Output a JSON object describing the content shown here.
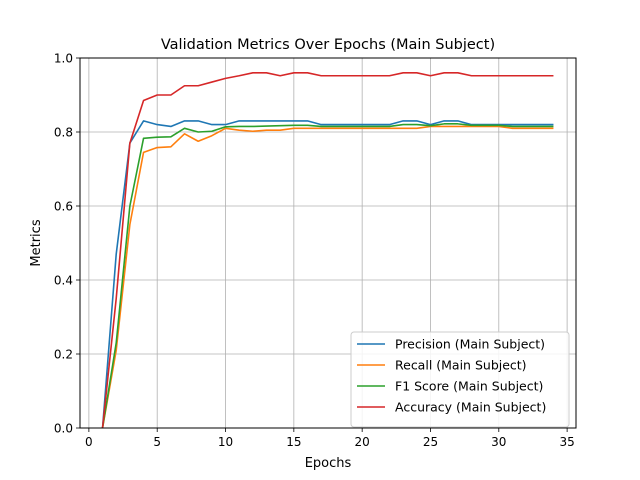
{
  "chart_data": {
    "type": "line",
    "title": "Validation Metrics Over Epochs (Main Subject)",
    "xlabel": "Epochs",
    "ylabel": "Metrics",
    "xlim": [
      -0.65,
      35.65
    ],
    "ylim": [
      0.0,
      1.0
    ],
    "xticks": [
      0,
      5,
      10,
      15,
      20,
      25,
      30,
      35
    ],
    "xtick_labels": [
      "0",
      "5",
      "10",
      "15",
      "20",
      "25",
      "30",
      "35"
    ],
    "yticks": [
      0.0,
      0.2,
      0.4,
      0.6,
      0.8,
      1.0
    ],
    "ytick_labels": [
      "0.0",
      "0.2",
      "0.4",
      "0.6",
      "0.8",
      "1.0"
    ],
    "grid": true,
    "legend_position": "lower-right",
    "x": [
      1,
      2,
      3,
      4,
      5,
      6,
      7,
      8,
      9,
      10,
      11,
      12,
      13,
      14,
      15,
      16,
      17,
      18,
      19,
      20,
      21,
      22,
      23,
      24,
      25,
      26,
      27,
      28,
      29,
      30,
      31,
      32,
      33,
      34
    ],
    "series": [
      {
        "name": "Precision (Main Subject)",
        "color": "#1f77b4",
        "values": [
          0.0,
          0.47,
          0.77,
          0.83,
          0.82,
          0.815,
          0.83,
          0.83,
          0.82,
          0.82,
          0.83,
          0.83,
          0.83,
          0.83,
          0.83,
          0.83,
          0.82,
          0.82,
          0.82,
          0.82,
          0.82,
          0.82,
          0.83,
          0.83,
          0.82,
          0.83,
          0.83,
          0.82,
          0.82,
          0.82,
          0.82,
          0.82,
          0.82,
          0.82
        ]
      },
      {
        "name": "Recall (Main Subject)",
        "color": "#ff7f0e",
        "values": [
          0.0,
          0.21,
          0.55,
          0.745,
          0.758,
          0.76,
          0.795,
          0.775,
          0.79,
          0.81,
          0.805,
          0.802,
          0.805,
          0.805,
          0.81,
          0.81,
          0.81,
          0.81,
          0.81,
          0.81,
          0.81,
          0.81,
          0.81,
          0.81,
          0.815,
          0.815,
          0.815,
          0.815,
          0.815,
          0.815,
          0.81,
          0.81,
          0.81,
          0.81
        ]
      },
      {
        "name": "F1 Score (Main Subject)",
        "color": "#2ca02c",
        "values": [
          0.0,
          0.23,
          0.6,
          0.783,
          0.786,
          0.787,
          0.81,
          0.8,
          0.802,
          0.814,
          0.815,
          0.815,
          0.816,
          0.817,
          0.818,
          0.818,
          0.815,
          0.815,
          0.815,
          0.815,
          0.815,
          0.815,
          0.82,
          0.82,
          0.817,
          0.822,
          0.822,
          0.818,
          0.818,
          0.818,
          0.815,
          0.815,
          0.815,
          0.815
        ]
      },
      {
        "name": "Accuracy (Main Subject)",
        "color": "#d62728",
        "values": [
          0.0,
          0.35,
          0.77,
          0.885,
          0.9,
          0.9,
          0.925,
          0.925,
          0.935,
          0.945,
          0.952,
          0.96,
          0.96,
          0.952,
          0.96,
          0.96,
          0.952,
          0.952,
          0.952,
          0.952,
          0.952,
          0.952,
          0.96,
          0.96,
          0.952,
          0.96,
          0.96,
          0.952,
          0.952,
          0.952,
          0.952,
          0.952,
          0.952,
          0.952
        ]
      }
    ]
  }
}
